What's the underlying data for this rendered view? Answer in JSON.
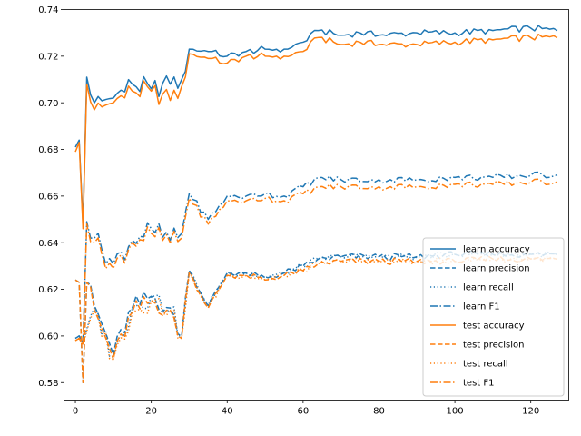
{
  "chart_data": {
    "type": "line",
    "title": "",
    "xlabel": "",
    "ylabel": "",
    "xlim": [
      -3,
      130
    ],
    "ylim": [
      0.5725,
      0.74
    ],
    "xticks": [
      0,
      20,
      40,
      60,
      80,
      100,
      120
    ],
    "yticks": [
      0.58,
      0.6,
      0.62,
      0.64,
      0.66,
      0.68,
      0.7,
      0.72,
      0.74
    ],
    "grid": false,
    "legend_position": "lower-right",
    "colors": {
      "learn": "#1f77b4",
      "test": "#ff7f0e"
    },
    "series": [
      {
        "name": "learn accuracy",
        "style": "solid",
        "color": "#1f77b4",
        "keypoints": [
          [
            0,
            0.681
          ],
          [
            1,
            0.684
          ],
          [
            2,
            0.648
          ],
          [
            3,
            0.711
          ],
          [
            5,
            0.7
          ],
          [
            10,
            0.702
          ],
          [
            15,
            0.708
          ],
          [
            20,
            0.706
          ],
          [
            25,
            0.708
          ],
          [
            28,
            0.71
          ],
          [
            30,
            0.723
          ],
          [
            35,
            0.722
          ],
          [
            40,
            0.72
          ],
          [
            45,
            0.722
          ],
          [
            50,
            0.723
          ],
          [
            55,
            0.723
          ],
          [
            60,
            0.726
          ],
          [
            64,
            0.731
          ],
          [
            70,
            0.729
          ],
          [
            75,
            0.73
          ],
          [
            80,
            0.729
          ],
          [
            90,
            0.73
          ],
          [
            100,
            0.73
          ],
          [
            110,
            0.731
          ],
          [
            120,
            0.732
          ],
          [
            127,
            0.731
          ]
        ]
      },
      {
        "name": "learn precision",
        "style": "dashed",
        "color": "#1f77b4",
        "keypoints": [
          [
            0,
            0.624
          ],
          [
            1,
            0.623
          ],
          [
            2,
            0.58
          ],
          [
            3,
            0.623
          ],
          [
            5,
            0.613
          ],
          [
            10,
            0.592
          ],
          [
            15,
            0.612
          ],
          [
            20,
            0.617
          ],
          [
            25,
            0.612
          ],
          [
            28,
            0.6
          ],
          [
            30,
            0.628
          ],
          [
            35,
            0.613
          ],
          [
            40,
            0.627
          ],
          [
            45,
            0.627
          ],
          [
            50,
            0.625
          ],
          [
            55,
            0.627
          ],
          [
            60,
            0.63
          ],
          [
            64,
            0.633
          ],
          [
            70,
            0.634
          ],
          [
            80,
            0.634
          ],
          [
            90,
            0.634
          ],
          [
            100,
            0.635
          ],
          [
            110,
            0.635
          ],
          [
            120,
            0.635
          ],
          [
            127,
            0.635
          ]
        ]
      },
      {
        "name": "learn recall",
        "style": "dotted",
        "color": "#1f77b4",
        "keypoints": [
          [
            0,
            0.599
          ],
          [
            1,
            0.6
          ],
          [
            2,
            0.597
          ],
          [
            3,
            0.603
          ],
          [
            5,
            0.612
          ],
          [
            10,
            0.591
          ],
          [
            15,
            0.612
          ],
          [
            20,
            0.617
          ],
          [
            25,
            0.612
          ],
          [
            28,
            0.6
          ],
          [
            30,
            0.628
          ],
          [
            35,
            0.613
          ],
          [
            40,
            0.627
          ],
          [
            45,
            0.627
          ],
          [
            50,
            0.625
          ],
          [
            55,
            0.627
          ],
          [
            60,
            0.63
          ],
          [
            64,
            0.633
          ],
          [
            70,
            0.634
          ],
          [
            80,
            0.634
          ],
          [
            90,
            0.634
          ],
          [
            100,
            0.635
          ],
          [
            110,
            0.635
          ],
          [
            120,
            0.635
          ],
          [
            127,
            0.635
          ]
        ]
      },
      {
        "name": "learn F1",
        "style": "dashdot",
        "color": "#1f77b4",
        "keypoints": [
          [
            0,
            0.599
          ],
          [
            1,
            0.6
          ],
          [
            2,
            0.597
          ],
          [
            3,
            0.649
          ],
          [
            5,
            0.642
          ],
          [
            10,
            0.631
          ],
          [
            15,
            0.641
          ],
          [
            20,
            0.646
          ],
          [
            25,
            0.641
          ],
          [
            28,
            0.644
          ],
          [
            30,
            0.661
          ],
          [
            35,
            0.65
          ],
          [
            40,
            0.66
          ],
          [
            45,
            0.66
          ],
          [
            50,
            0.661
          ],
          [
            55,
            0.66
          ],
          [
            60,
            0.664
          ],
          [
            64,
            0.668
          ],
          [
            70,
            0.667
          ],
          [
            80,
            0.667
          ],
          [
            90,
            0.667
          ],
          [
            100,
            0.668
          ],
          [
            110,
            0.668
          ],
          [
            120,
            0.669
          ],
          [
            127,
            0.669
          ]
        ]
      },
      {
        "name": "test accuracy",
        "style": "solid",
        "color": "#ff7f0e",
        "keypoints": [
          [
            0,
            0.679
          ],
          [
            1,
            0.683
          ],
          [
            2,
            0.646
          ],
          [
            3,
            0.708
          ],
          [
            5,
            0.697
          ],
          [
            10,
            0.7
          ],
          [
            15,
            0.705
          ],
          [
            20,
            0.705
          ],
          [
            25,
            0.701
          ],
          [
            28,
            0.707
          ],
          [
            30,
            0.721
          ],
          [
            35,
            0.719
          ],
          [
            40,
            0.717
          ],
          [
            45,
            0.72
          ],
          [
            50,
            0.72
          ],
          [
            55,
            0.72
          ],
          [
            60,
            0.722
          ],
          [
            64,
            0.728
          ],
          [
            70,
            0.725
          ],
          [
            75,
            0.726
          ],
          [
            80,
            0.725
          ],
          [
            90,
            0.725
          ],
          [
            100,
            0.726
          ],
          [
            110,
            0.727
          ],
          [
            120,
            0.728
          ],
          [
            127,
            0.728
          ]
        ]
      },
      {
        "name": "test precision",
        "style": "dashed",
        "color": "#ff7f0e",
        "keypoints": [
          [
            0,
            0.624
          ],
          [
            1,
            0.623
          ],
          [
            2,
            0.58
          ],
          [
            3,
            0.623
          ],
          [
            5,
            0.611
          ],
          [
            10,
            0.59
          ],
          [
            15,
            0.61
          ],
          [
            20,
            0.615
          ],
          [
            25,
            0.611
          ],
          [
            28,
            0.599
          ],
          [
            30,
            0.627
          ],
          [
            35,
            0.612
          ],
          [
            40,
            0.626
          ],
          [
            45,
            0.626
          ],
          [
            50,
            0.624
          ],
          [
            55,
            0.626
          ],
          [
            60,
            0.628
          ],
          [
            64,
            0.631
          ],
          [
            70,
            0.632
          ],
          [
            80,
            0.632
          ],
          [
            90,
            0.632
          ],
          [
            100,
            0.632
          ],
          [
            110,
            0.633
          ],
          [
            120,
            0.633
          ],
          [
            127,
            0.633
          ]
        ]
      },
      {
        "name": "test recall",
        "style": "dotted",
        "color": "#ff7f0e",
        "keypoints": [
          [
            0,
            0.598
          ],
          [
            1,
            0.599
          ],
          [
            2,
            0.596
          ],
          [
            3,
            0.602
          ],
          [
            5,
            0.611
          ],
          [
            10,
            0.59
          ],
          [
            15,
            0.61
          ],
          [
            20,
            0.615
          ],
          [
            25,
            0.611
          ],
          [
            28,
            0.599
          ],
          [
            30,
            0.627
          ],
          [
            35,
            0.612
          ],
          [
            40,
            0.626
          ],
          [
            45,
            0.626
          ],
          [
            50,
            0.624
          ],
          [
            55,
            0.626
          ],
          [
            60,
            0.628
          ],
          [
            64,
            0.631
          ],
          [
            70,
            0.632
          ],
          [
            80,
            0.632
          ],
          [
            90,
            0.632
          ],
          [
            100,
            0.632
          ],
          [
            110,
            0.633
          ],
          [
            120,
            0.633
          ],
          [
            127,
            0.633
          ]
        ]
      },
      {
        "name": "test F1",
        "style": "dashdot",
        "color": "#ff7f0e",
        "keypoints": [
          [
            0,
            0.598
          ],
          [
            1,
            0.599
          ],
          [
            2,
            0.596
          ],
          [
            3,
            0.648
          ],
          [
            5,
            0.64
          ],
          [
            10,
            0.629
          ],
          [
            15,
            0.64
          ],
          [
            20,
            0.644
          ],
          [
            25,
            0.64
          ],
          [
            28,
            0.642
          ],
          [
            30,
            0.659
          ],
          [
            35,
            0.648
          ],
          [
            40,
            0.658
          ],
          [
            45,
            0.658
          ],
          [
            50,
            0.659
          ],
          [
            55,
            0.658
          ],
          [
            60,
            0.661
          ],
          [
            64,
            0.664
          ],
          [
            70,
            0.664
          ],
          [
            80,
            0.664
          ],
          [
            90,
            0.664
          ],
          [
            100,
            0.665
          ],
          [
            110,
            0.665
          ],
          [
            120,
            0.666
          ],
          [
            127,
            0.666
          ]
        ]
      }
    ]
  }
}
